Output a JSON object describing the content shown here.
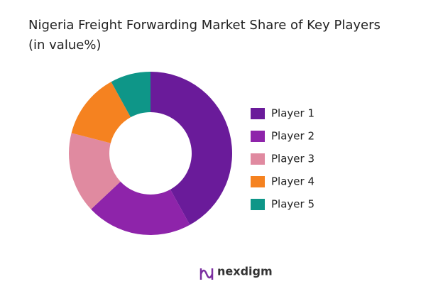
{
  "chart_data": {
    "type": "donut",
    "title": "Nigeria Freight Forwarding Market Share of Key Players",
    "subtitle": "(in value%)",
    "categories": [
      "Player 1",
      "Player 2",
      "Player 3",
      "Player 4",
      "Player 5"
    ],
    "values": [
      42,
      21,
      16,
      13,
      8
    ],
    "colors": [
      "#6a1b9a",
      "#8e24aa",
      "#e08aa0",
      "#f58220",
      "#0e9688"
    ],
    "legend": "right",
    "brand": "nexdigm"
  }
}
